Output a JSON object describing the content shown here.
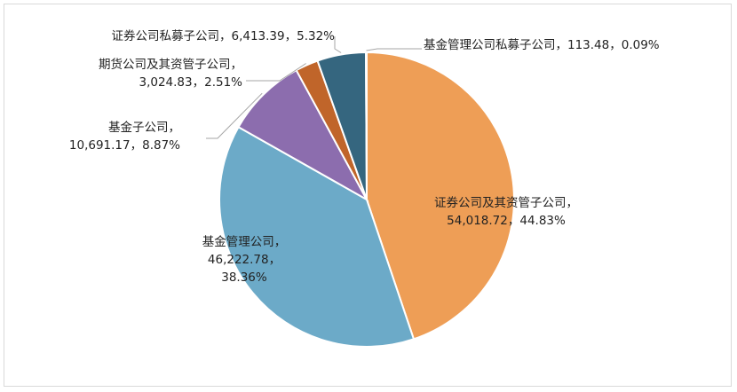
{
  "chart_data": {
    "type": "pie",
    "title": "",
    "start_angle_deg": 0,
    "direction": "clockwise",
    "slices": [
      {
        "label": "证券公司及其资管子公司",
        "value": "54,018.72",
        "percent": "44.83%",
        "value_num": 54018.72,
        "color": "#EE9E56"
      },
      {
        "label": "基金管理公司",
        "value": "46,222.78",
        "percent": "38.36%",
        "value_num": 46222.78,
        "color": "#6CAAC8"
      },
      {
        "label": "基金子公司",
        "value": "10,691.17",
        "percent": "8.87%",
        "value_num": 10691.17,
        "color": "#8C6DAE"
      },
      {
        "label": "期货公司及其资管子公司",
        "value": "3,024.83",
        "percent": "2.51%",
        "value_num": 3024.83,
        "color": "#C0652A"
      },
      {
        "label": "证券公司私募子公司",
        "value": "6,413.39",
        "percent": "5.32%",
        "value_num": 6413.39,
        "color": "#35667F"
      },
      {
        "label": "基金管理公司私募子公司",
        "value": "113.48",
        "percent": "0.09%",
        "value_num": 113.48,
        "color": "#5B9BD5"
      }
    ],
    "legend": "none"
  }
}
